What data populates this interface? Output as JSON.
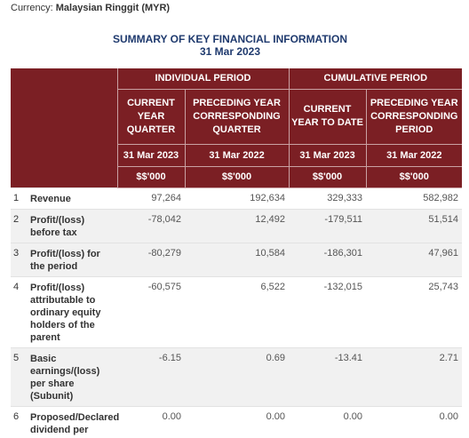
{
  "currency": {
    "label": "Currency:",
    "value": "Malaysian Ringgit (MYR)"
  },
  "title": {
    "line1": "SUMMARY OF KEY FINANCIAL INFORMATION",
    "line2": "31 Mar 2023"
  },
  "groups": {
    "individual": "INDIVIDUAL PERIOD",
    "cumulative": "CUMULATIVE PERIOD"
  },
  "columns": [
    {
      "label": "CURRENT YEAR QUARTER",
      "date": "31 Mar 2023",
      "unit": "$$'000"
    },
    {
      "label": "PRECEDING YEAR CORRESPONDING QUARTER",
      "date": "31 Mar 2022",
      "unit": "$$'000"
    },
    {
      "label": "CURRENT YEAR TO DATE",
      "date": "31 Mar 2023",
      "unit": "$$'000"
    },
    {
      "label": "PRECEDING YEAR CORRESPONDING PERIOD",
      "date": "31 Mar 2022",
      "unit": "$$'000"
    }
  ],
  "rows": [
    {
      "num": "1",
      "label": "Revenue",
      "values": [
        "97,264",
        "192,634",
        "329,333",
        "582,982"
      ]
    },
    {
      "num": "2",
      "label": "Profit/(loss) before tax",
      "values": [
        "-78,042",
        "12,492",
        "-179,511",
        "51,514"
      ]
    },
    {
      "num": "3",
      "label": "Profit/(loss) for the period",
      "values": [
        "-80,279",
        "10,584",
        "-186,301",
        "47,961"
      ]
    },
    {
      "num": "4",
      "label": "Profit/(loss) attributable to ordinary equity holders of the parent",
      "values": [
        "-60,575",
        "6,522",
        "-132,015",
        "25,743"
      ]
    },
    {
      "num": "5",
      "label": "Basic earnings/(loss) per share (Subunit)",
      "values": [
        "-6.15",
        "0.69",
        "-13.41",
        "2.71"
      ]
    },
    {
      "num": "6",
      "label": "Proposed/Declared dividend per share (Subunit)",
      "values": [
        "0.00",
        "0.00",
        "0.00",
        "0.00"
      ]
    }
  ]
}
